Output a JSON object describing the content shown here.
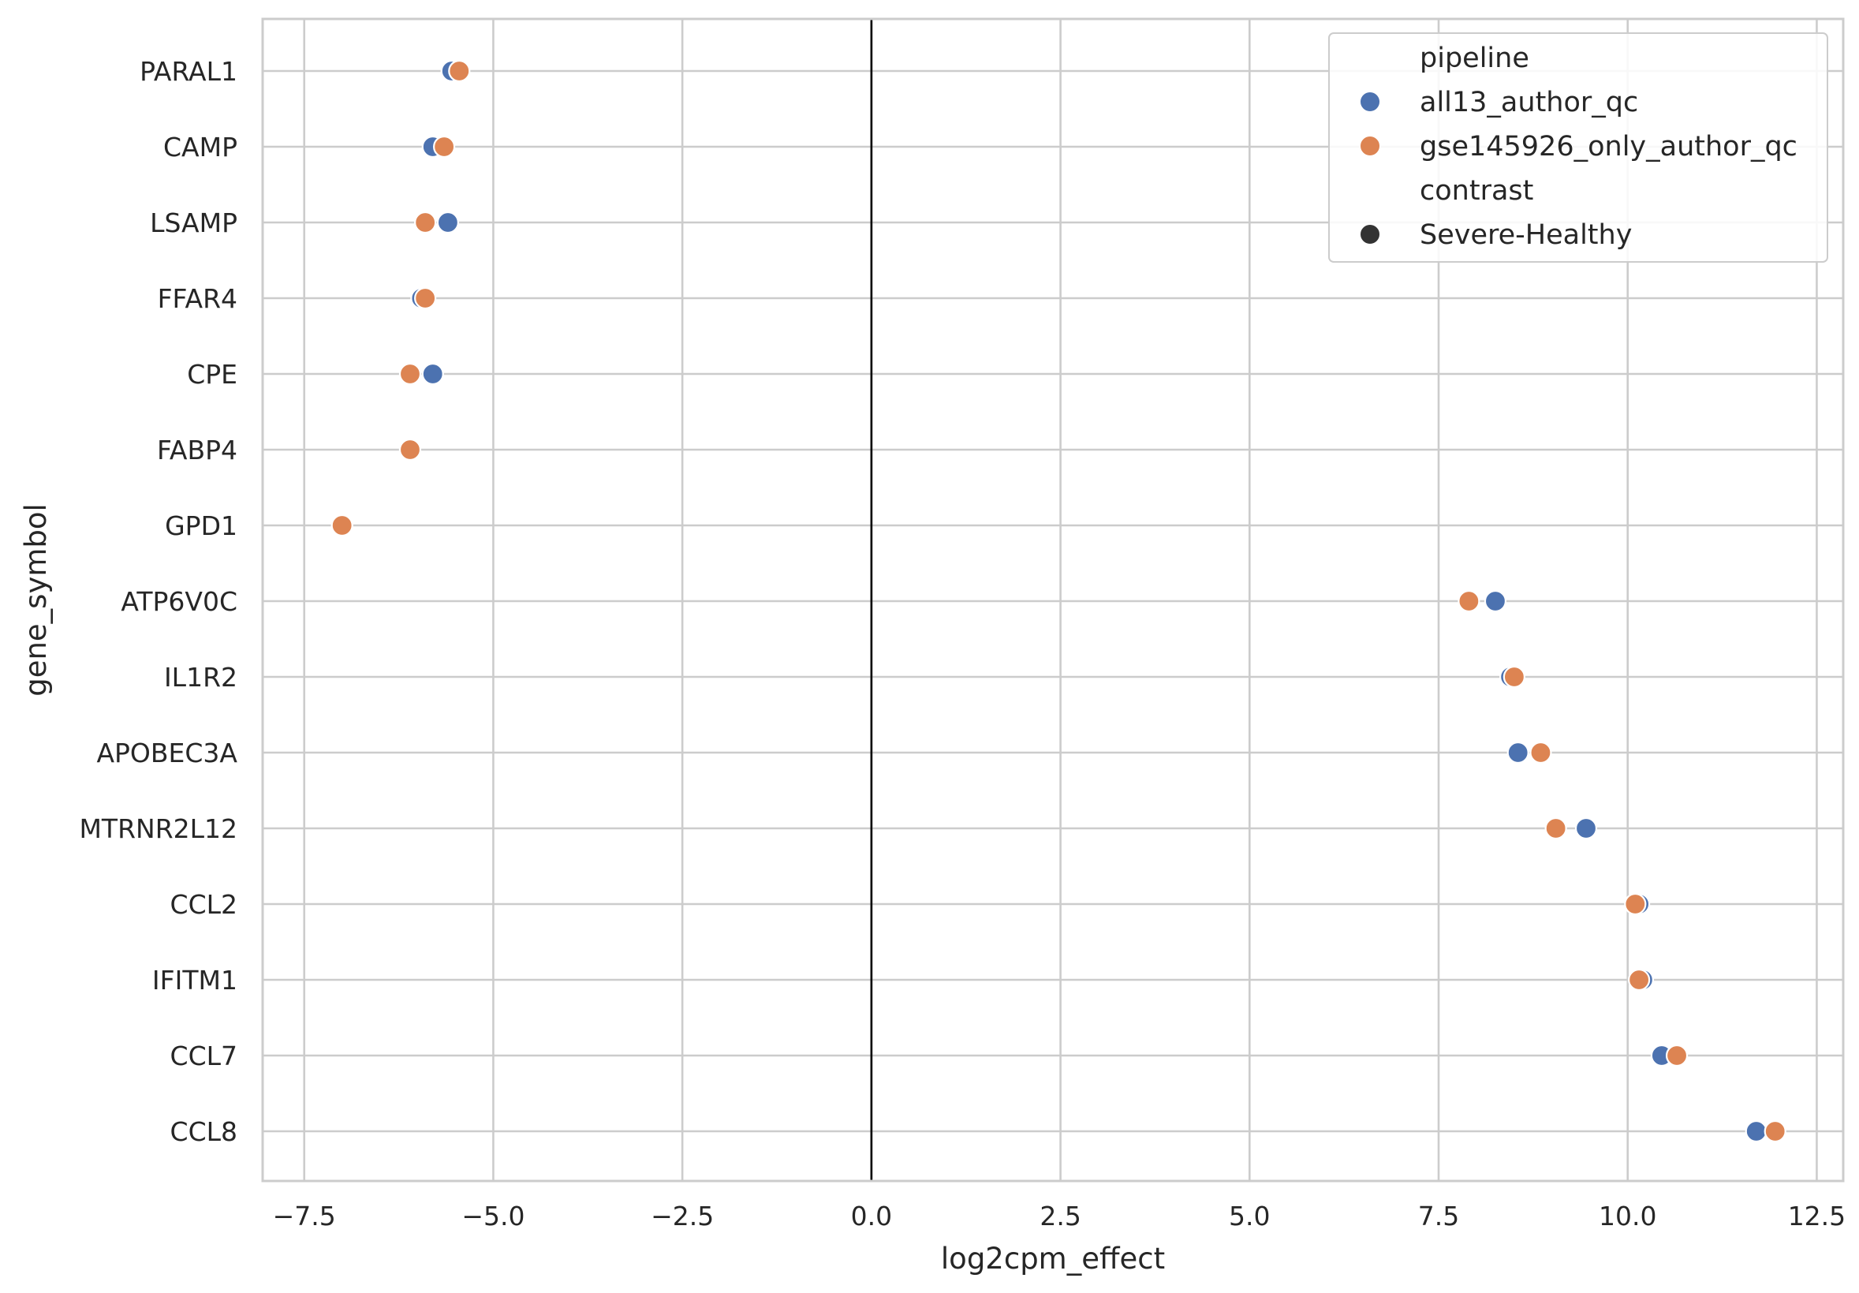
{
  "chart_data": {
    "type": "scatter",
    "xlabel": "log2cpm_effect",
    "ylabel": "gene_symbol",
    "xlim": [
      -8.05,
      12.85
    ],
    "xticks": [
      -7.5,
      -5.0,
      -2.5,
      0.0,
      2.5,
      5.0,
      7.5,
      10.0,
      12.5
    ],
    "xtick_labels": [
      "−7.5",
      "−5.0",
      "−2.5",
      "0.0",
      "2.5",
      "5.0",
      "7.5",
      "10.0",
      "12.5"
    ],
    "categories": [
      "PARAL1",
      "CAMP",
      "LSAMP",
      "FFAR4",
      "CPE",
      "FABP4",
      "GPD1",
      "ATP6V0C",
      "IL1R2",
      "APOBEC3A",
      "MTRNR2L12",
      "CCL2",
      "IFITM1",
      "CCL7",
      "CCL8"
    ],
    "reference_line_x": 0.0,
    "grid": true,
    "series": [
      {
        "name": "all13_author_qc",
        "color": "#4c72b0",
        "values": [
          -5.55,
          -5.8,
          -5.6,
          -5.95,
          -5.8,
          -6.1,
          -7.0,
          8.25,
          8.45,
          8.55,
          9.45,
          10.15,
          10.2,
          10.45,
          11.7
        ]
      },
      {
        "name": "gse145926_only_author_qc",
        "color": "#dd8452",
        "values": [
          -5.45,
          -5.65,
          -5.9,
          -5.9,
          -6.1,
          -6.1,
          -7.0,
          7.9,
          8.5,
          8.85,
          9.05,
          10.1,
          10.15,
          10.65,
          11.95
        ]
      }
    ],
    "legend": {
      "position": "top-right",
      "entries": [
        {
          "label": "pipeline",
          "kind": "header"
        },
        {
          "label": "all13_author_qc",
          "kind": "marker",
          "color": "#4c72b0"
        },
        {
          "label": "gse145926_only_author_qc",
          "kind": "marker",
          "color": "#dd8452"
        },
        {
          "label": "contrast",
          "kind": "header"
        },
        {
          "label": "Severe-Healthy",
          "kind": "marker",
          "color": "#333333"
        }
      ]
    }
  }
}
